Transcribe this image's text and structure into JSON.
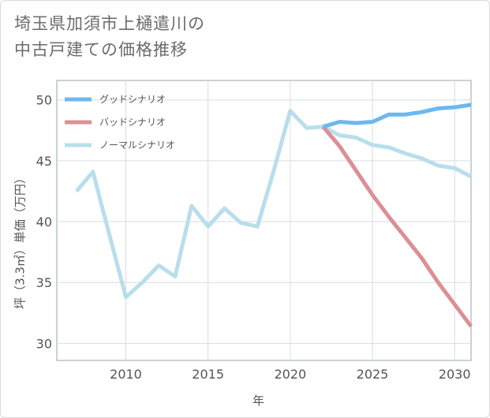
{
  "title_lines": [
    "埼玉県加須市上樋遣川の",
    "中古戸建ての価格推移"
  ],
  "chart_data": {
    "type": "line",
    "title": "埼玉県加須市上樋遣川の中古戸建ての価格推移",
    "xlabel": "年",
    "ylabel": "坪（3.3㎡）単価（万円）",
    "xlim": [
      2005.8,
      2031
    ],
    "ylim": [
      28.6,
      51.6
    ],
    "xticks": [
      2010,
      2015,
      2020,
      2025,
      2030
    ],
    "yticks": [
      30,
      35,
      40,
      45,
      50
    ],
    "grid": true,
    "legend_position": "top-left",
    "series": [
      {
        "name": "グッドシナリオ",
        "color": "#6cb8ef",
        "x": [
          2022,
          2023,
          2024,
          2025,
          2026,
          2027,
          2028,
          2029,
          2030,
          2031
        ],
        "values": [
          47.8,
          48.2,
          48.1,
          48.2,
          48.8,
          48.8,
          49.0,
          49.3,
          49.4,
          49.6
        ]
      },
      {
        "name": "バッドシナリオ",
        "color": "#dc8f95",
        "x": [
          2022,
          2023,
          2024,
          2025,
          2026,
          2027,
          2028,
          2029,
          2030,
          2031
        ],
        "values": [
          47.8,
          46.2,
          44.2,
          42.2,
          40.4,
          38.7,
          37.0,
          35.0,
          33.2,
          31.4
        ]
      },
      {
        "name": "ノーマルシナリオ",
        "color": "#b9deeb",
        "x": [
          2007,
          2008,
          2009,
          2010,
          2011,
          2012,
          2013,
          2014,
          2015,
          2016,
          2017,
          2018,
          2019,
          2020,
          2021,
          2022,
          2023,
          2024,
          2025,
          2026,
          2027,
          2028,
          2029,
          2030,
          2031
        ],
        "values": [
          42.5,
          44.1,
          38.9,
          33.8,
          35.0,
          36.4,
          35.5,
          41.3,
          39.6,
          41.1,
          39.9,
          39.6,
          44.2,
          49.1,
          47.7,
          47.8,
          47.1,
          46.9,
          46.3,
          46.1,
          45.6,
          45.2,
          44.6,
          44.4,
          43.7
        ]
      }
    ]
  }
}
